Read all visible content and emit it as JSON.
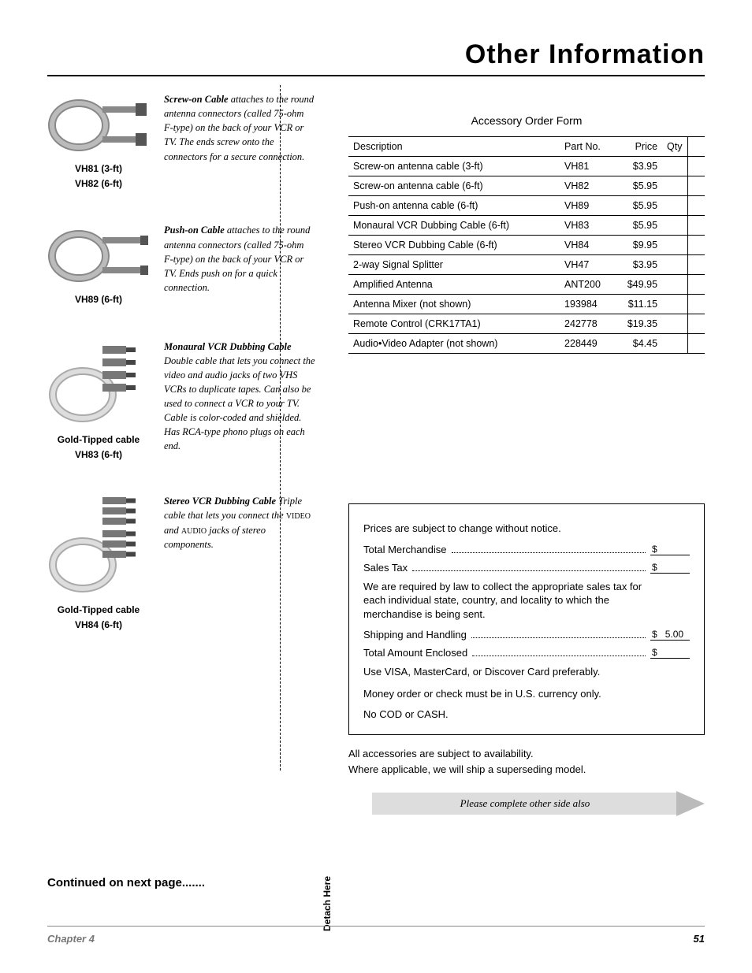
{
  "header": {
    "title": "Other Information"
  },
  "cables": [
    {
      "labels": [
        "VH81 (3-ft)",
        "VH82 (6-ft)"
      ],
      "lead": "Screw-on Cable",
      "desc": " attaches to the round antenna connectors (called 75-ohm F-type) on the back of your VCR or TV. The ends screw onto the connectors for a secure connection."
    },
    {
      "labels": [
        "VH89 (6-ft)"
      ],
      "lead": "Push-on Cable",
      "desc": " attaches to the round antenna connectors (called 75-ohm F-type) on the back of your VCR or TV. Ends push on for a quick connection."
    },
    {
      "labels": [
        "Gold-Tipped cable",
        "VH83 (6-ft)"
      ],
      "lead": "Monaural VCR Dubbing Cable",
      "desc": " Double cable that lets you connect the video and audio jacks of two VHS VCRs to duplicate tapes. Can also be used to connect a VCR to your TV. Cable is color-coded and shielded. Has RCA-type phono plugs on each end."
    },
    {
      "labels": [
        "Gold-Tipped cable",
        "VH84 (6-ft)"
      ],
      "lead": "Stereo VCR Dubbing Cable",
      "desc_html": "Triple cable that lets you connect the VIDEO and AUDIO jacks of stereo components."
    }
  ],
  "continued": "Continued on next page.......",
  "detach": "Detach Here",
  "form": {
    "title": "Accessory Order Form",
    "headers": {
      "desc": "Description",
      "part": "Part No.",
      "price": "Price",
      "qty": "Qty"
    },
    "rows": [
      {
        "desc": "Screw-on antenna cable (3-ft)",
        "part": "VH81",
        "price": "$3.95"
      },
      {
        "desc": "Screw-on antenna cable (6-ft)",
        "part": "VH82",
        "price": "$5.95"
      },
      {
        "desc": "Push-on antenna cable (6-ft)",
        "part": "VH89",
        "price": "$5.95"
      },
      {
        "desc": "Monaural VCR Dubbing Cable (6-ft)",
        "part": "VH83",
        "price": "$5.95"
      },
      {
        "desc": "Stereo VCR Dubbing Cable (6-ft)",
        "part": "VH84",
        "price": "$9.95"
      },
      {
        "desc": "2-way Signal Splitter",
        "part": "VH47",
        "price": "$3.95"
      },
      {
        "desc": "Amplified Antenna",
        "part": "ANT200",
        "price": "$49.95"
      },
      {
        "desc": "Antenna Mixer (not shown)",
        "part": "193984",
        "price": "$11.15"
      },
      {
        "desc": "Remote Control (CRK17TA1)",
        "part": "242778",
        "price": "$19.35"
      },
      {
        "desc": "Audio•Video Adapter (not shown)",
        "part": "228449",
        "price": "$4.45"
      }
    ]
  },
  "totals": {
    "notice": "Prices are subject to change without notice.",
    "merch": "Total Merchandise",
    "tax": "Sales Tax",
    "taxnote": "We are required by law to collect the appropriate sales tax for each individual state, country, and locality to which the merchandise is being sent.",
    "ship": "Shipping and Handling",
    "ship_amt": "5.00",
    "total": "Total Amount Enclosed",
    "cc": "Use VISA, MasterCard, or Discover Card preferably.",
    "check": "Money order or check must be in U.S. currency only.",
    "cod": "No COD or CASH.",
    "dollar": "$"
  },
  "avail": {
    "l1": "All accessories are subject to availability.",
    "l2": "Where applicable, we will ship a superseding model."
  },
  "complete": "Please complete other side also",
  "footer": {
    "chapter": "Chapter 4",
    "page": "51"
  }
}
